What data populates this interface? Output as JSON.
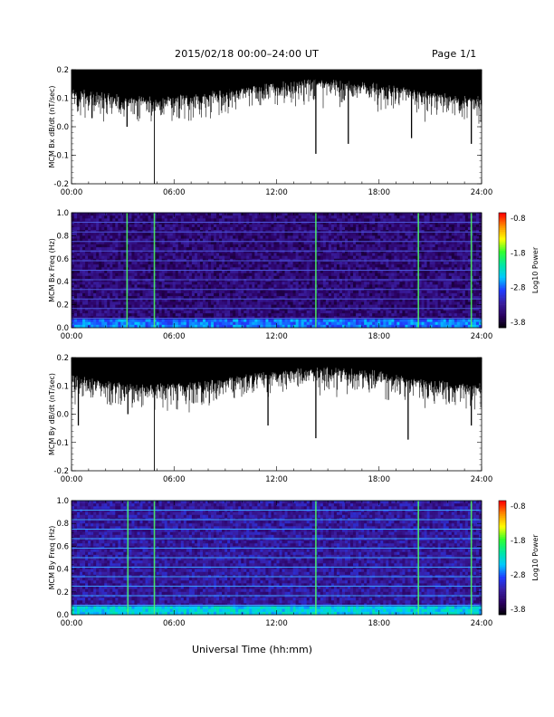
{
  "header": {
    "title": "2015/02/18  00:00–24:00 UT",
    "page": "Page 1/1"
  },
  "footer": {
    "xlabel": "Universal Time (hh:mm)"
  },
  "colors": {
    "trace": "#000000",
    "spectrogram_floor": "#2a0a5c",
    "colormap": [
      "#000000",
      "#2a0060",
      "#3a1ea0",
      "#1f3cff",
      "#00c8ff",
      "#00e8a0",
      "#30ff30",
      "#ffff00",
      "#ff9000",
      "#ff0000"
    ]
  },
  "chart_data": [
    {
      "type": "line",
      "id": "bx-dbdt",
      "ylabel": "MCM Bx dB/dt (nT/sec)",
      "ylim": [
        -0.2,
        0.2
      ],
      "yticks": [
        "0.2",
        "0.1",
        "0.0",
        "-0.1",
        "-0.2"
      ],
      "xlim": [
        0,
        24
      ],
      "xticks": [
        "00:00",
        "06:00",
        "12:00",
        "18:00",
        "24:00"
      ],
      "spikes": [
        {
          "x": 1.2,
          "y": 0.03
        },
        {
          "x": 3.25,
          "y": 0.0
        },
        {
          "x": 4.85,
          "y": -0.2
        },
        {
          "x": 6.3,
          "y": 0.03
        },
        {
          "x": 9.2,
          "y": 0.07
        },
        {
          "x": 14.3,
          "y": -0.095
        },
        {
          "x": 16.2,
          "y": -0.06
        },
        {
          "x": 19.9,
          "y": -0.04
        },
        {
          "x": 23.4,
          "y": -0.06
        }
      ]
    },
    {
      "type": "heatmap",
      "id": "bx-spectrogram",
      "ylabel": "MCM Bx Freq (Hz)",
      "ylim": [
        0.0,
        1.0
      ],
      "yticks": [
        "1.0",
        "0.8",
        "0.6",
        "0.4",
        "0.2",
        "0.0"
      ],
      "xlim": [
        0,
        24
      ],
      "xticks": [
        "00:00",
        "06:00",
        "12:00",
        "18:00",
        "24:00"
      ],
      "colorbar": {
        "label": "Log10 Power",
        "ticks": [
          "-0.8",
          "-1.8",
          "-2.8",
          "-3.8"
        ],
        "range": [
          -3.8,
          -0.8
        ]
      },
      "harmonic_lines_hz": [
        0.083,
        0.167,
        0.25,
        0.333,
        0.417,
        0.5,
        0.583,
        0.667,
        0.75,
        0.833,
        0.917,
        1.0
      ],
      "broadband_events_hr": [
        3.25,
        4.85,
        14.3,
        20.3,
        23.4
      ]
    },
    {
      "type": "line",
      "id": "by-dbdt",
      "ylabel": "MCM By dB/dt (nT/sec)",
      "ylim": [
        -0.2,
        0.2
      ],
      "yticks": [
        "0.2",
        "0.1",
        "0.0",
        "-0.1",
        "-0.2"
      ],
      "xlim": [
        0,
        24
      ],
      "xticks": [
        "00:00",
        "06:00",
        "12:00",
        "18:00",
        "24:00"
      ],
      "spikes": [
        {
          "x": 0.4,
          "y": -0.04
        },
        {
          "x": 3.3,
          "y": 0.0
        },
        {
          "x": 4.85,
          "y": -0.2
        },
        {
          "x": 11.5,
          "y": -0.04
        },
        {
          "x": 14.3,
          "y": -0.085
        },
        {
          "x": 19.7,
          "y": -0.09
        },
        {
          "x": 23.4,
          "y": -0.04
        }
      ]
    },
    {
      "type": "heatmap",
      "id": "by-spectrogram",
      "ylabel": "MCM By Freq (Hz)",
      "ylim": [
        0.0,
        1.0
      ],
      "yticks": [
        "1.0",
        "0.8",
        "0.6",
        "0.4",
        "0.2",
        "0.0"
      ],
      "xlim": [
        0,
        24
      ],
      "xticks": [
        "00:00",
        "06:00",
        "12:00",
        "18:00",
        "24:00"
      ],
      "colorbar": {
        "label": "Log10 Power",
        "ticks": [
          "-0.8",
          "-1.8",
          "-2.8",
          "-3.8"
        ],
        "range": [
          -3.8,
          -0.8
        ]
      },
      "harmonic_lines_hz": [
        0.083,
        0.167,
        0.25,
        0.333,
        0.417,
        0.5,
        0.583,
        0.667,
        0.75,
        0.833,
        0.917,
        1.0
      ],
      "broadband_events_hr": [
        3.3,
        4.85,
        14.3,
        20.3,
        23.4
      ]
    }
  ]
}
